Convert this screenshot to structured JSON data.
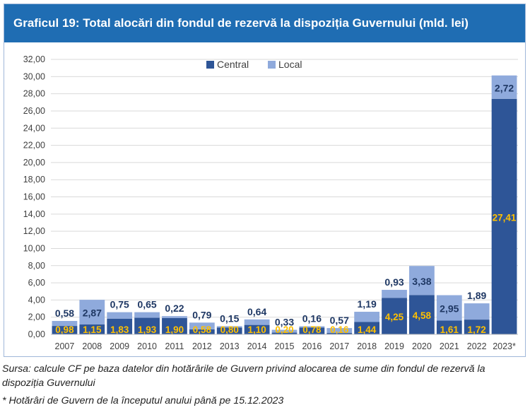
{
  "header": {
    "title": "Graficul 19: Total alocări din fondul de rezervă la dispoziția Guvernului (mld. lei)"
  },
  "footer": {
    "source": "Sursa: calcule CF pe baza datelor din hotărârile de Guvern privind alocarea de sume din fondul de rezervă la dispoziția Guvernului",
    "note": "* Hotărâri de Guvern de la începutul anului până pe 15.12.2023"
  },
  "colors": {
    "central": "#2e5597",
    "local": "#8faadc",
    "central_label": "#ffc000",
    "local_label": "#1f3864",
    "title_bg": "#1f6db3"
  },
  "chart_data": {
    "type": "bar",
    "stacked": true,
    "title": "Graficul 19: Total alocări din fondul de rezervă la dispoziția Guvernului (mld. lei)",
    "xlabel": "",
    "ylabel": "",
    "ylim": [
      0,
      32
    ],
    "y_ticks": [
      "0,00",
      "2,00",
      "4,00",
      "6,00",
      "8,00",
      "10,00",
      "12,00",
      "14,00",
      "16,00",
      "18,00",
      "20,00",
      "22,00",
      "24,00",
      "26,00",
      "28,00",
      "30,00",
      "32,00"
    ],
    "grid": true,
    "legend_position": "top-center",
    "categories": [
      "2007",
      "2008",
      "2009",
      "2010",
      "2011",
      "2012",
      "2013",
      "2014",
      "2015",
      "2016",
      "2017",
      "2018",
      "2019",
      "2020",
      "2021",
      "2022",
      "2023*"
    ],
    "series": [
      {
        "name": "Central",
        "values": [
          0.98,
          1.15,
          1.83,
          1.93,
          1.9,
          0.58,
          0.8,
          1.1,
          0.2,
          0.78,
          0.16,
          1.44,
          4.25,
          4.58,
          1.61,
          1.72,
          27.41
        ],
        "labels": [
          "0,98",
          "1,15",
          "1,83",
          "1,93",
          "1,90",
          "0,58",
          "0,80",
          "1,10",
          "0,20",
          "0,78",
          "0,16",
          "1,44",
          "4,25",
          "4,58",
          "1,61",
          "1,72",
          "27,41"
        ]
      },
      {
        "name": "Local",
        "values": [
          0.58,
          2.87,
          0.75,
          0.65,
          0.22,
          0.79,
          0.15,
          0.64,
          0.33,
          0.16,
          0.57,
          1.19,
          0.93,
          3.38,
          2.95,
          1.89,
          2.72
        ],
        "labels": [
          "0,58",
          "2,87",
          "0,75",
          "0,65",
          "0,22",
          "0,79",
          "0,15",
          "0,64",
          "0,33",
          "0,16",
          "0,57",
          "1,19",
          "0,93",
          "3,38",
          "2,95",
          "1,89",
          "2,72"
        ]
      }
    ]
  }
}
